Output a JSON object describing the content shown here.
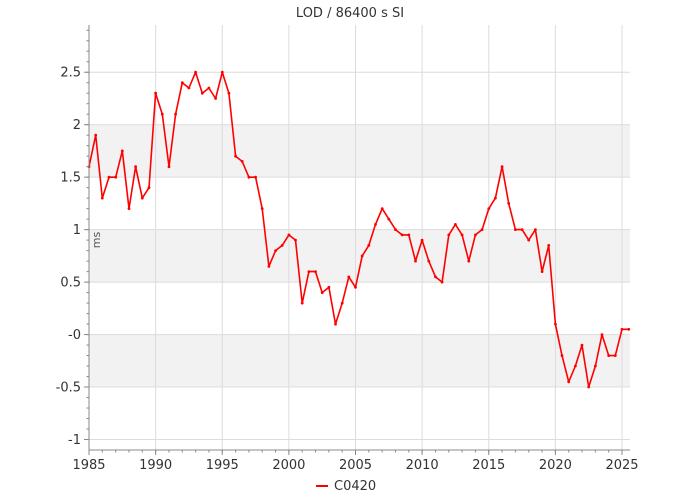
{
  "chart_data": {
    "type": "line",
    "title": "LOD / 86400 s SI",
    "ylabel": "ms",
    "xlim": [
      1985,
      2025.6
    ],
    "ylim": [
      -1.1,
      2.95
    ],
    "x_ticks": [
      1985,
      1990,
      1995,
      2000,
      2005,
      2010,
      2015,
      2020,
      2025
    ],
    "y_ticks": [
      {
        "value": 2.5,
        "label": "2.5"
      },
      {
        "value": 2,
        "label": "2"
      },
      {
        "value": 1.5,
        "label": "1.5"
      },
      {
        "value": 1,
        "label": "1"
      },
      {
        "value": 0.5,
        "label": "0.5"
      },
      {
        "value": 0,
        "label": "-0"
      },
      {
        "value": -0.5,
        "label": "-0.5"
      },
      {
        "value": -1,
        "label": "-1"
      }
    ],
    "shaded_bands": [
      [
        1.5,
        2
      ],
      [
        0.5,
        1
      ],
      [
        -0.5,
        0
      ]
    ],
    "grid": true,
    "legend_position": "bottom-center",
    "series": [
      {
        "name": "C0420",
        "color": "#ff0000",
        "x": [
          1985.0,
          1985.5,
          1986.0,
          1986.5,
          1987.0,
          1987.5,
          1988.0,
          1988.5,
          1989.0,
          1989.5,
          1990.0,
          1990.5,
          1991.0,
          1991.5,
          1992.0,
          1992.5,
          1993.0,
          1993.5,
          1994.0,
          1994.5,
          1995.0,
          1995.5,
          1996.0,
          1996.5,
          1997.0,
          1997.5,
          1998.0,
          1998.5,
          1999.0,
          1999.5,
          2000.0,
          2000.5,
          2001.0,
          2001.5,
          2002.0,
          2002.5,
          2003.0,
          2003.5,
          2004.0,
          2004.5,
          2005.0,
          2005.5,
          2006.0,
          2006.5,
          2007.0,
          2007.5,
          2008.0,
          2008.5,
          2009.0,
          2009.5,
          2010.0,
          2010.5,
          2011.0,
          2011.5,
          2012.0,
          2012.5,
          2013.0,
          2013.5,
          2014.0,
          2014.5,
          2015.0,
          2015.5,
          2016.0,
          2016.5,
          2017.0,
          2017.5,
          2018.0,
          2018.5,
          2019.0,
          2019.5,
          2020.0,
          2020.5,
          2021.0,
          2021.5,
          2022.0,
          2022.5,
          2023.0,
          2023.5,
          2024.0,
          2024.5,
          2025.0,
          2025.5
        ],
        "y": [
          1.6,
          1.9,
          1.3,
          1.5,
          1.5,
          1.75,
          1.2,
          1.6,
          1.3,
          1.4,
          2.3,
          2.1,
          1.6,
          2.1,
          2.4,
          2.35,
          2.5,
          2.3,
          2.35,
          2.25,
          2.5,
          2.3,
          1.7,
          1.65,
          1.5,
          1.5,
          1.2,
          0.65,
          0.8,
          0.85,
          0.95,
          0.9,
          0.3,
          0.6,
          0.6,
          0.4,
          0.45,
          0.1,
          0.3,
          0.55,
          0.45,
          0.75,
          0.85,
          1.05,
          1.2,
          1.1,
          1.0,
          0.95,
          0.95,
          0.7,
          0.9,
          0.7,
          0.55,
          0.5,
          0.95,
          1.05,
          0.95,
          0.7,
          0.95,
          1.0,
          1.2,
          1.3,
          1.6,
          1.25,
          1.0,
          1.0,
          0.9,
          1.0,
          0.6,
          0.85,
          0.1,
          -0.2,
          -0.45,
          -0.3,
          -0.1,
          -0.5,
          -0.3,
          0.0,
          -0.2,
          -0.2,
          0.05,
          0.05
        ]
      }
    ]
  }
}
